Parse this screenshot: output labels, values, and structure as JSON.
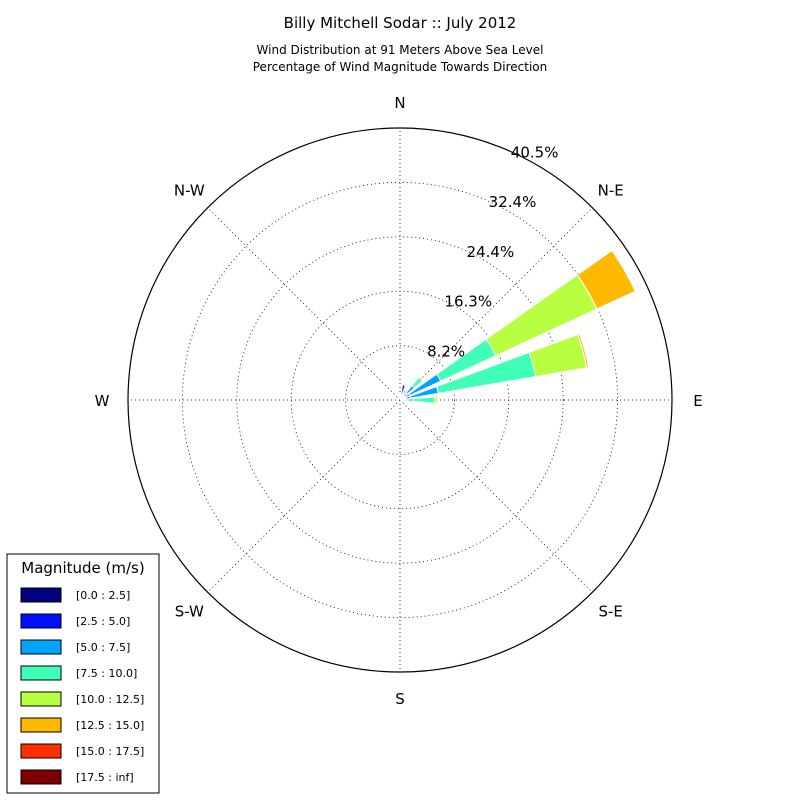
{
  "chart_data": {
    "type": "windrose",
    "title": "Billy Mitchell Sodar :: July 2012",
    "subtitle_lines": [
      "Wind Distribution at 91 Meters Above Sea Level",
      "Percentage of Wind Magnitude Towards Direction"
    ],
    "directions": [
      "E",
      "N-E",
      "N",
      "N-W",
      "W",
      "S-W",
      "S",
      "S-E"
    ],
    "radial_ticks": [
      "8.2%",
      "16.3%",
      "24.4%",
      "32.4%",
      "40.5%"
    ],
    "radial_max": 40.5,
    "legend_title": "Magnitude (m/s)",
    "bins": [
      {
        "label": "[0.0 : 2.5]",
        "color": "#000080"
      },
      {
        "label": "[2.5 : 5.0]",
        "color": "#0010ff"
      },
      {
        "label": "[5.0 : 7.5]",
        "color": "#00a4ff"
      },
      {
        "label": "[7.5 : 10.0]",
        "color": "#40ffb7"
      },
      {
        "label": "[10.0 : 12.5]",
        "color": "#b7ff40"
      },
      {
        "label": "[12.5 : 15.0]",
        "color": "#ffb900"
      },
      {
        "label": "[15.0 : 17.5]",
        "color": "#ff3000"
      },
      {
        "label": "[17.5 : inf]",
        "color": "#800000"
      }
    ],
    "sectors": [
      {
        "direction_deg": 0,
        "cumulative": [
          0.5,
          0.9,
          2.0,
          5.2,
          5.6,
          5.6,
          5.6,
          5.6
        ]
      },
      {
        "direction_deg": 15,
        "cumulative": [
          0.8,
          1.6,
          5.8,
          20.5,
          28.2,
          28.5,
          28.6,
          28.6
        ]
      },
      {
        "direction_deg": 30,
        "cumulative": [
          0.7,
          1.6,
          6.7,
          15.7,
          32.3,
          38.6,
          38.6,
          38.6
        ]
      },
      {
        "direction_deg": 45,
        "cumulative": [
          0.6,
          1.4,
          2.8,
          4.4,
          4.6,
          4.6,
          4.6,
          4.6
        ]
      },
      {
        "direction_deg": 60,
        "cumulative": [
          0.4,
          1.0,
          1.6,
          1.8,
          1.8,
          1.8,
          1.8,
          1.8
        ]
      },
      {
        "direction_deg": 75,
        "cumulative": [
          0.7,
          2.3,
          2.4,
          2.4,
          2.4,
          2.4,
          2.4,
          2.4
        ]
      },
      {
        "direction_deg": 90,
        "cumulative": [
          0.4,
          0.8,
          0.8,
          0.8,
          0.8,
          0.8,
          0.8,
          0.8
        ]
      },
      {
        "direction_deg": -15,
        "cumulative": [
          0.3,
          0.5,
          0.7,
          0.9,
          0.9,
          0.9,
          0.9,
          0.9
        ]
      }
    ]
  }
}
